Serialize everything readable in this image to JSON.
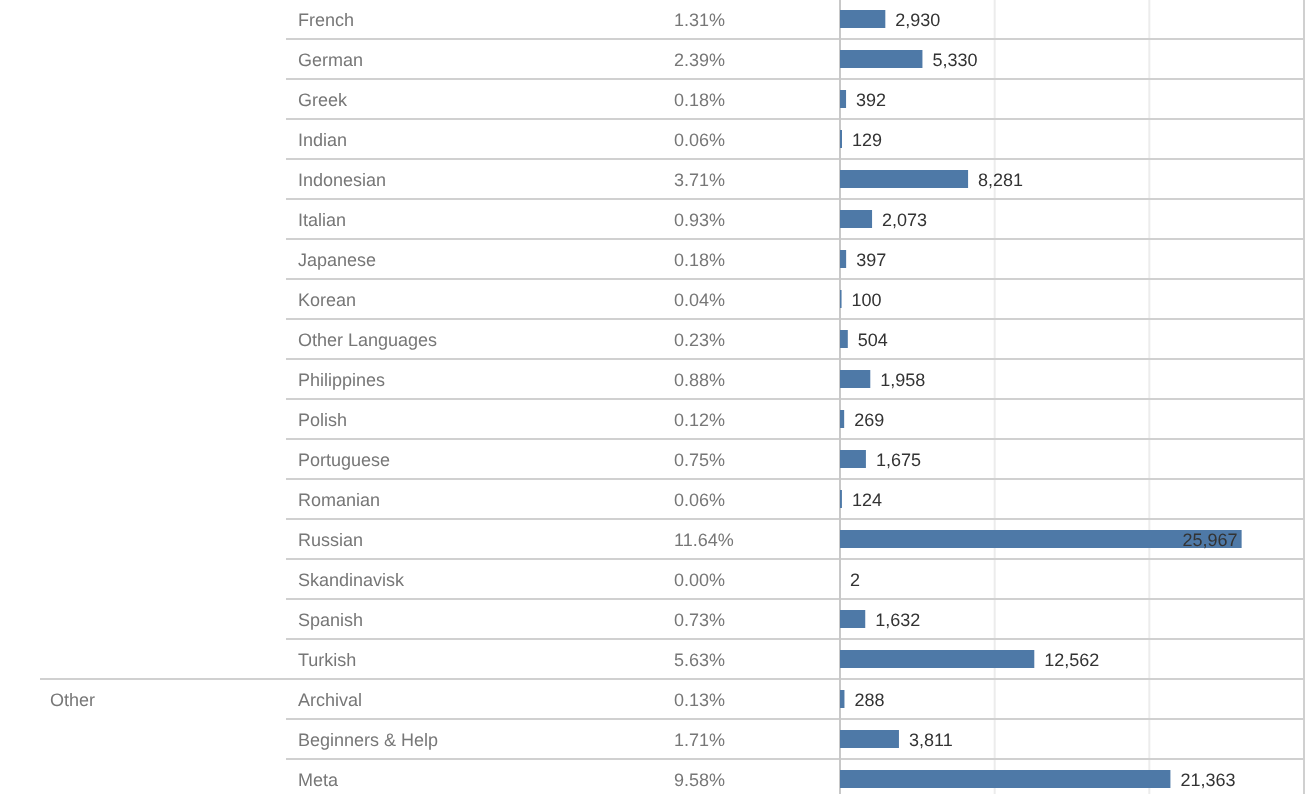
{
  "chart_data": {
    "type": "bar",
    "orientation": "horizontal",
    "categories": [
      "French",
      "German",
      "Greek",
      "Indian",
      "Indonesian",
      "Italian",
      "Japanese",
      "Korean",
      "Other Languages",
      "Philippines",
      "Polish",
      "Portuguese",
      "Romanian",
      "Russian",
      "Skandinavisk",
      "Spanish",
      "Turkish",
      "Archival",
      "Beginners & Help",
      "Meta"
    ],
    "values": [
      2930,
      5330,
      392,
      129,
      8281,
      2073,
      397,
      100,
      504,
      1958,
      269,
      1675,
      124,
      25967,
      2,
      1632,
      12562,
      288,
      3811,
      21363
    ],
    "value_labels": [
      "2,930",
      "5,330",
      "392",
      "129",
      "8,281",
      "2,073",
      "397",
      "100",
      "504",
      "1,958",
      "269",
      "1,675",
      "124",
      "25,967",
      "2",
      "1,632",
      "12,562",
      "288",
      "3,811",
      "21,363"
    ],
    "color": "#4e79a7",
    "xlim": [
      0,
      30000
    ],
    "xticks": [
      {
        "value": 10000,
        "label": null
      },
      {
        "value": 20000,
        "label": null
      }
    ],
    "grid": "x",
    "tick_labels": "y",
    "annotations": [
      "1.31%",
      "2.39%",
      "0.18%",
      "0.06%",
      "3.71%",
      "0.93%",
      "0.18%",
      "0.04%",
      "0.23%",
      "0.88%",
      "0.12%",
      "0.75%",
      "0.06%",
      "11.64%",
      "0.00%",
      "0.73%",
      "5.63%",
      "Other",
      "0.13%",
      "1.71%",
      "9.58%"
    ]
  }
}
